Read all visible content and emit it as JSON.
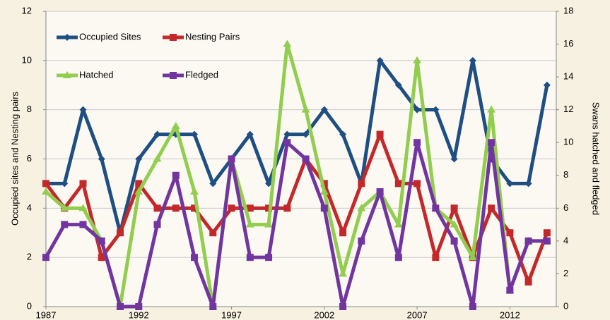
{
  "chart_data": {
    "type": "line",
    "x": [
      1987,
      1988,
      1989,
      1990,
      1991,
      1992,
      1993,
      1994,
      1995,
      1996,
      1997,
      1998,
      1999,
      2000,
      2001,
      2002,
      2003,
      2004,
      2005,
      2006,
      2007,
      2008,
      2009,
      2010,
      2011,
      2012,
      2013,
      2014
    ],
    "xlim": [
      1987,
      2014.5
    ],
    "xticks": [
      1987,
      1992,
      1997,
      2002,
      2007,
      2012
    ],
    "ylim": [
      0,
      12
    ],
    "yticks": [
      0,
      2,
      4,
      6,
      8,
      10,
      12
    ],
    "y2lim": [
      0,
      18
    ],
    "y2ticks": [
      0,
      2,
      4,
      6,
      8,
      10,
      12,
      14,
      16,
      18
    ],
    "ylabel": "Occupied sites and Nesting pairs",
    "y2label": "Swans hatched and fledged",
    "grid": true,
    "legend": "upper left",
    "series": [
      {
        "name": "Occupied Sites",
        "color": "#1f4f82",
        "marker": "diamond",
        "values": [
          5,
          5,
          8,
          6,
          3,
          6,
          7,
          7,
          7,
          5,
          6,
          7,
          5,
          7,
          7,
          8,
          7,
          5,
          10,
          9,
          8,
          8,
          6,
          10,
          6,
          5,
          5,
          9
        ]
      },
      {
        "name": "Nesting Pairs",
        "color": "#c3282b",
        "marker": "square",
        "values": [
          5,
          4,
          5,
          2,
          3,
          5,
          4,
          4,
          4,
          3,
          4,
          4,
          4,
          4,
          6,
          5,
          3,
          5,
          7,
          5,
          5,
          2,
          4,
          2,
          4,
          3,
          1,
          3
        ]
      },
      {
        "name": "Hatched",
        "color": "#92cd4f",
        "marker": "triangle",
        "axis": "y2",
        "values": [
          7,
          6,
          6,
          4,
          0,
          7,
          9,
          11,
          7,
          0,
          9,
          5,
          5,
          16,
          12,
          7,
          2,
          6,
          7,
          5,
          15,
          6,
          5,
          3,
          12,
          1,
          4,
          4
        ]
      },
      {
        "name": "Fledged",
        "color": "#7235a0",
        "marker": "square",
        "axis": "y2",
        "values": [
          3,
          5,
          5,
          4,
          0,
          0,
          5,
          8,
          3,
          0,
          9,
          3,
          3,
          10,
          9,
          6,
          0,
          4,
          7,
          3,
          10,
          6,
          4,
          0,
          10,
          1,
          4,
          4
        ]
      }
    ]
  }
}
